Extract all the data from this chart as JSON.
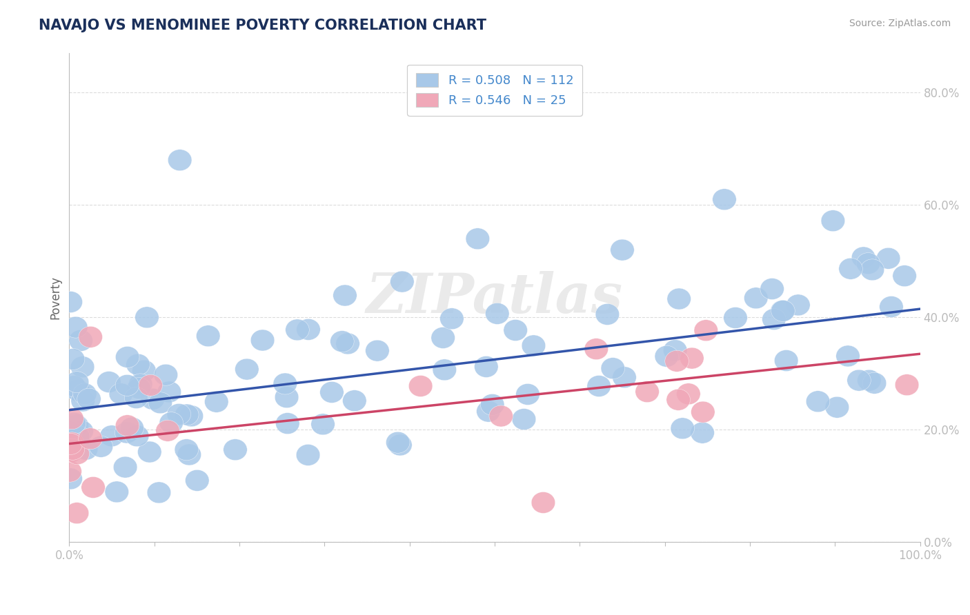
{
  "title": "NAVAJO VS MENOMINEE POVERTY CORRELATION CHART",
  "source_text": "Source: ZipAtlas.com",
  "ylabel": "Poverty",
  "xlim": [
    0.0,
    1.0
  ],
  "ylim": [
    0.0,
    0.87
  ],
  "ytick_positions": [
    0.0,
    0.2,
    0.4,
    0.6,
    0.8
  ],
  "ytick_labels": [
    "0.0%",
    "20.0%",
    "40.0%",
    "60.0%",
    "80.0%"
  ],
  "xtick_positions": [
    0.0,
    0.1,
    0.2,
    0.3,
    0.4,
    0.5,
    0.6,
    0.7,
    0.8,
    0.9,
    1.0
  ],
  "xtick_labels": [
    "0.0%",
    "",
    "",
    "",
    "",
    "",
    "",
    "",
    "",
    "",
    "100.0%"
  ],
  "navajo_color": "#A8C8E8",
  "menominee_color": "#F0A8B8",
  "navajo_line_color": "#3355AA",
  "menominee_line_color": "#CC4466",
  "navajo_R": 0.508,
  "navajo_N": 112,
  "menominee_R": 0.546,
  "menominee_N": 25,
  "background_color": "#FFFFFF",
  "grid_color": "#CCCCCC",
  "title_color": "#1A2F5A",
  "tick_label_color": "#4488CC",
  "legend_text_color": "#4488CC",
  "watermark_color": "#DDDDDD",
  "watermark": "ZIPatlas",
  "navajo_line_x0": 0.0,
  "navajo_line_y0": 0.235,
  "navajo_line_x1": 1.0,
  "navajo_line_y1": 0.415,
  "menominee_line_x0": 0.0,
  "menominee_line_y0": 0.175,
  "menominee_line_x1": 1.0,
  "menominee_line_y1": 0.335
}
